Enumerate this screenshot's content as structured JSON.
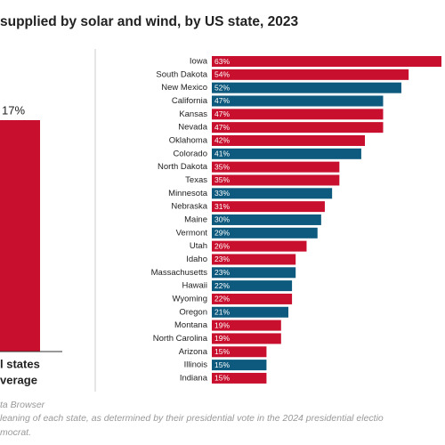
{
  "title": "supplied by solar and wind, by US state, 2023",
  "chart_data": [
    {
      "type": "column",
      "categories": [
        [
          "l states",
          "verage"
        ]
      ],
      "values": [
        17
      ],
      "value_labels": [
        "17%"
      ],
      "color": "#c8102e",
      "ylim": [
        0,
        17
      ]
    },
    {
      "type": "hbar",
      "categories": [
        "Iowa",
        "South Dakota",
        "New Mexico",
        "California",
        "Kansas",
        "Nevada",
        "Oklahoma",
        "Colorado",
        "North Dakota",
        "Texas",
        "Minnesota",
        "Nebraska",
        "Maine",
        "Vermont",
        "Utah",
        "Idaho",
        "Massachusetts",
        "Hawaii",
        "Wyoming",
        "Oregon",
        "Montana",
        "North Carolina",
        "Arizona",
        "Illinois",
        "Indiana"
      ],
      "values": [
        63,
        54,
        52,
        47,
        47,
        47,
        42,
        41,
        35,
        35,
        33,
        31,
        30,
        29,
        26,
        23,
        23,
        22,
        22,
        21,
        19,
        19,
        15,
        15,
        15
      ],
      "value_labels": [
        "63%",
        "54%",
        "52%",
        "47%",
        "47%",
        "47%",
        "42%",
        "41%",
        "35%",
        "35%",
        "33%",
        "31%",
        "30%",
        "29%",
        "26%",
        "23%",
        "23%",
        "22%",
        "22%",
        "21%",
        "19%",
        "19%",
        "15%",
        "15%",
        "15%"
      ],
      "colors": [
        "#c8102e",
        "#c8102e",
        "#0e5a7e",
        "#0e5a7e",
        "#c8102e",
        "#c8102e",
        "#c8102e",
        "#0e5a7e",
        "#c8102e",
        "#c8102e",
        "#0e5a7e",
        "#c8102e",
        "#0e5a7e",
        "#0e5a7e",
        "#c8102e",
        "#c8102e",
        "#0e5a7e",
        "#0e5a7e",
        "#c8102e",
        "#0e5a7e",
        "#c8102e",
        "#c8102e",
        "#c8102e",
        "#0e5a7e",
        "#c8102e"
      ],
      "xlim": [
        0,
        63
      ]
    }
  ],
  "footer": [
    "ta Browser",
    "leaning of each state, as determined by their presidential vote in the 2024 presidential electio",
    "mocrat."
  ]
}
